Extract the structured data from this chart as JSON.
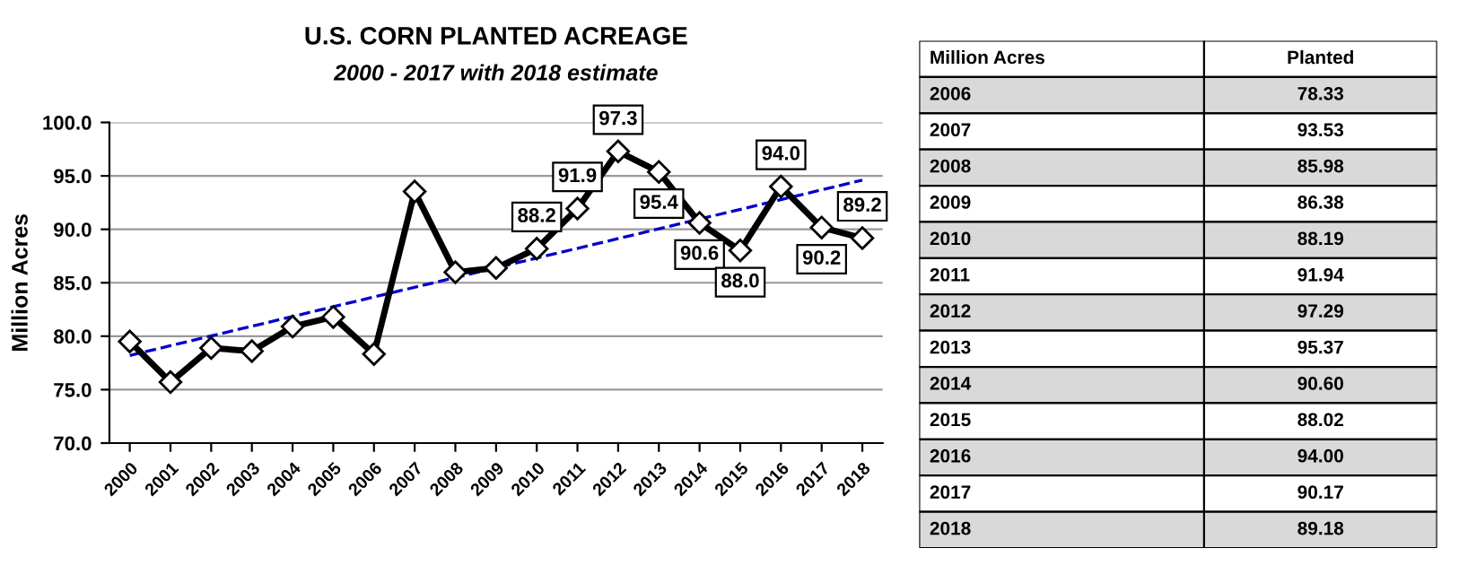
{
  "chart_data": {
    "type": "line",
    "title": "U.S. CORN PLANTED ACREAGE",
    "subtitle": "2000 - 2017 with 2018 estimate",
    "ylabel": "Million Acres",
    "categories": [
      "2000",
      "2001",
      "2002",
      "2003",
      "2004",
      "2005",
      "2006",
      "2007",
      "2008",
      "2009",
      "2010",
      "2011",
      "2012",
      "2013",
      "2014",
      "2015",
      "2016",
      "2017",
      "2018"
    ],
    "series": [
      {
        "color": "#000000",
        "marker": "diamond",
        "values": [
          79.5,
          75.7,
          78.9,
          78.6,
          80.9,
          81.8,
          78.33,
          93.53,
          85.98,
          86.38,
          88.19,
          91.94,
          97.29,
          95.37,
          90.6,
          88.02,
          94.0,
          90.17,
          89.18
        ],
        "value_labels": [
          null,
          null,
          null,
          null,
          null,
          null,
          null,
          null,
          null,
          null,
          "88.2",
          "91.9",
          "97.3",
          "95.4",
          "90.6",
          "88.0",
          "94.0",
          "90.2",
          "89.2"
        ]
      },
      {
        "color": "#0000cc",
        "line_style": "dashed",
        "marker": "none",
        "values": [
          78.2,
          null,
          null,
          null,
          null,
          null,
          null,
          null,
          null,
          null,
          null,
          null,
          null,
          null,
          null,
          null,
          null,
          null,
          94.6
        ]
      }
    ],
    "ylim": [
      70,
      100
    ],
    "yticks": [
      {
        "value": 70,
        "label": "70.0"
      },
      {
        "value": 75,
        "label": "75.0"
      },
      {
        "value": 80,
        "label": "80.0"
      },
      {
        "value": 85,
        "label": "85.0"
      },
      {
        "value": 90,
        "label": "90.0"
      },
      {
        "value": 95,
        "label": "95.0"
      },
      {
        "value": 100,
        "label": "100.0"
      }
    ],
    "grid": "y",
    "legend": false,
    "annotations": [
      "Million Acres",
      "Planted",
      "2006",
      "78.33",
      "2007",
      "93.53",
      "2008",
      "85.98",
      "2009",
      "86.38",
      "2010",
      "88.19",
      "2011",
      "91.94",
      "2012",
      "97.29",
      "2013",
      "95.37",
      "2014",
      "90.60",
      "2015",
      "88.02",
      "2016",
      "94.00",
      "2017",
      "90.17",
      "2018",
      "89.18"
    ]
  }
}
